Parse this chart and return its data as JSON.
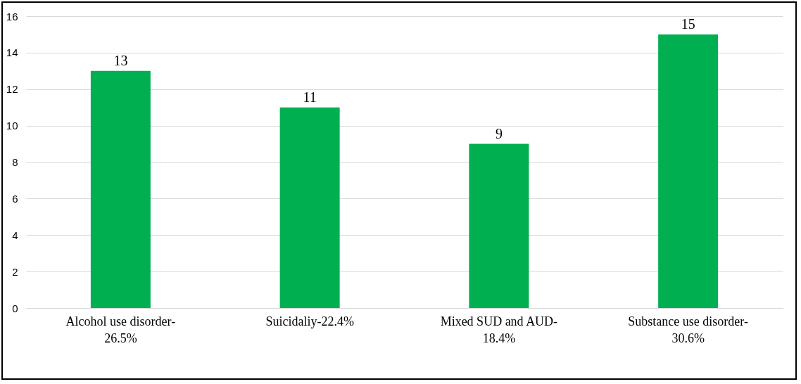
{
  "chart_data": {
    "type": "bar",
    "categories": [
      "Alcohol use disorder-26.5%",
      "Suicidaliy-22.4%",
      "Mixed SUD and AUD-18.4%",
      "Substance use disorder-30.6%"
    ],
    "values": [
      13,
      11,
      9,
      15
    ],
    "color": "#00b050",
    "ylim": [
      0,
      16
    ],
    "yticks": [
      0,
      2,
      4,
      6,
      8,
      10,
      12,
      14,
      16
    ],
    "grid": "y",
    "data_labels": true
  }
}
